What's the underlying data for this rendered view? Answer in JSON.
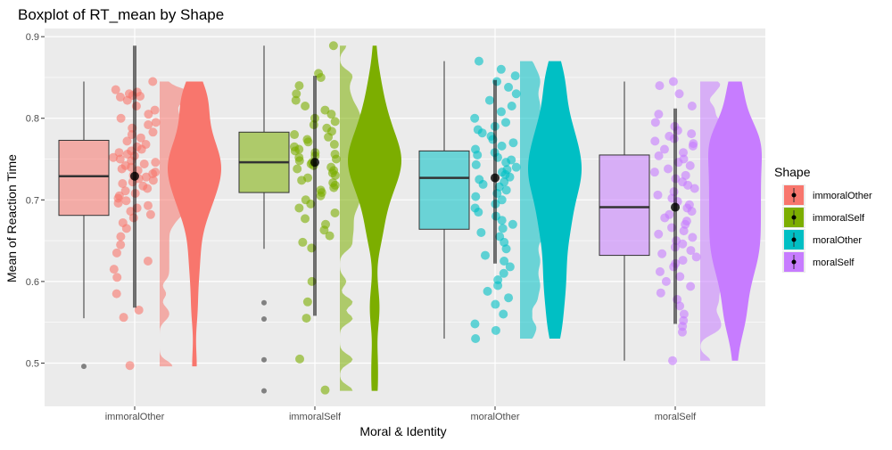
{
  "chart_data": {
    "type": "boxplot",
    "title": "Boxplot of RT_mean by Shape",
    "xlabel": "Moral & Identity",
    "ylabel": "Mean of Reaction Time",
    "ylim": [
      0.447,
      0.91
    ],
    "yticks": [
      "0.5",
      "0.6",
      "0.7",
      "0.8",
      "0.9"
    ],
    "grid": true,
    "legend": {
      "title": "Shape",
      "position": "right",
      "entries": [
        "immoralOther",
        "immoralSelf",
        "moralOther",
        "moralSelf"
      ]
    },
    "categories": [
      "immoralOther",
      "immoralSelf",
      "moralOther",
      "moralSelf"
    ],
    "series": [
      {
        "name": "immoralOther",
        "color": "#F8766D",
        "box": {
          "min": 0.555,
          "q1": 0.681,
          "median": 0.729,
          "q3": 0.773,
          "max": 0.845
        },
        "outliers": [
          0.496
        ],
        "mean": 0.729,
        "ci": [
          0.568,
          0.889
        ],
        "points": [
          0.845,
          0.835,
          0.832,
          0.83,
          0.828,
          0.827,
          0.826,
          0.822,
          0.815,
          0.81,
          0.805,
          0.8,
          0.795,
          0.792,
          0.788,
          0.783,
          0.78,
          0.776,
          0.772,
          0.768,
          0.765,
          0.762,
          0.76,
          0.758,
          0.756,
          0.754,
          0.752,
          0.75,
          0.748,
          0.746,
          0.744,
          0.742,
          0.74,
          0.738,
          0.736,
          0.734,
          0.732,
          0.73,
          0.728,
          0.726,
          0.724,
          0.722,
          0.72,
          0.717,
          0.714,
          0.711,
          0.708,
          0.705,
          0.702,
          0.699,
          0.696,
          0.693,
          0.69,
          0.686,
          0.682,
          0.678,
          0.672,
          0.665,
          0.655,
          0.645,
          0.635,
          0.625,
          0.615,
          0.605,
          0.585,
          0.565,
          0.556,
          0.497
        ]
      },
      {
        "name": "immoralSelf",
        "color": "#7CAE00",
        "box": {
          "min": 0.64,
          "q1": 0.709,
          "median": 0.746,
          "q3": 0.783,
          "max": 0.889
        },
        "outliers": [
          0.574,
          0.554,
          0.504,
          0.466
        ],
        "mean": 0.746,
        "ci": [
          0.558,
          0.852
        ],
        "points": [
          0.889,
          0.855,
          0.85,
          0.84,
          0.83,
          0.822,
          0.815,
          0.81,
          0.805,
          0.8,
          0.796,
          0.792,
          0.788,
          0.784,
          0.78,
          0.777,
          0.774,
          0.771,
          0.768,
          0.765,
          0.762,
          0.76,
          0.758,
          0.756,
          0.754,
          0.752,
          0.75,
          0.748,
          0.746,
          0.744,
          0.742,
          0.74,
          0.738,
          0.736,
          0.733,
          0.73,
          0.727,
          0.724,
          0.721,
          0.718,
          0.715,
          0.712,
          0.709,
          0.705,
          0.7,
          0.695,
          0.69,
          0.684,
          0.677,
          0.67,
          0.663,
          0.656,
          0.648,
          0.641,
          0.6,
          0.575,
          0.555,
          0.505,
          0.467
        ]
      },
      {
        "name": "moralOther",
        "color": "#00BFC4",
        "box": {
          "min": 0.53,
          "q1": 0.664,
          "median": 0.727,
          "q3": 0.76,
          "max": 0.87
        },
        "outliers": [],
        "mean": 0.727,
        "ci": [
          0.622,
          0.847
        ],
        "points": [
          0.87,
          0.86,
          0.852,
          0.845,
          0.838,
          0.83,
          0.822,
          0.815,
          0.808,
          0.8,
          0.795,
          0.79,
          0.786,
          0.782,
          0.778,
          0.774,
          0.77,
          0.766,
          0.762,
          0.758,
          0.755,
          0.752,
          0.749,
          0.746,
          0.743,
          0.74,
          0.737,
          0.734,
          0.731,
          0.728,
          0.725,
          0.722,
          0.719,
          0.716,
          0.712,
          0.708,
          0.704,
          0.7,
          0.695,
          0.69,
          0.685,
          0.68,
          0.675,
          0.67,
          0.665,
          0.66,
          0.655,
          0.648,
          0.64,
          0.632,
          0.625,
          0.618,
          0.61,
          0.602,
          0.595,
          0.588,
          0.58,
          0.572,
          0.56,
          0.548,
          0.54,
          0.53
        ]
      },
      {
        "name": "moralSelf",
        "color": "#C77CFF",
        "box": {
          "min": 0.503,
          "q1": 0.632,
          "median": 0.691,
          "q3": 0.755,
          "max": 0.845
        },
        "outliers": [],
        "mean": 0.691,
        "ci": [
          0.548,
          0.812
        ],
        "points": [
          0.845,
          0.84,
          0.83,
          0.815,
          0.805,
          0.795,
          0.79,
          0.785,
          0.781,
          0.778,
          0.775,
          0.772,
          0.769,
          0.766,
          0.762,
          0.758,
          0.754,
          0.75,
          0.746,
          0.742,
          0.738,
          0.734,
          0.73,
          0.726,
          0.722,
          0.718,
          0.714,
          0.71,
          0.706,
          0.702,
          0.698,
          0.694,
          0.69,
          0.686,
          0.682,
          0.678,
          0.674,
          0.67,
          0.666,
          0.662,
          0.658,
          0.654,
          0.65,
          0.646,
          0.642,
          0.638,
          0.634,
          0.63,
          0.626,
          0.622,
          0.618,
          0.612,
          0.606,
          0.6,
          0.594,
          0.586,
          0.578,
          0.57,
          0.56,
          0.552,
          0.545,
          0.538,
          0.503
        ]
      }
    ]
  }
}
